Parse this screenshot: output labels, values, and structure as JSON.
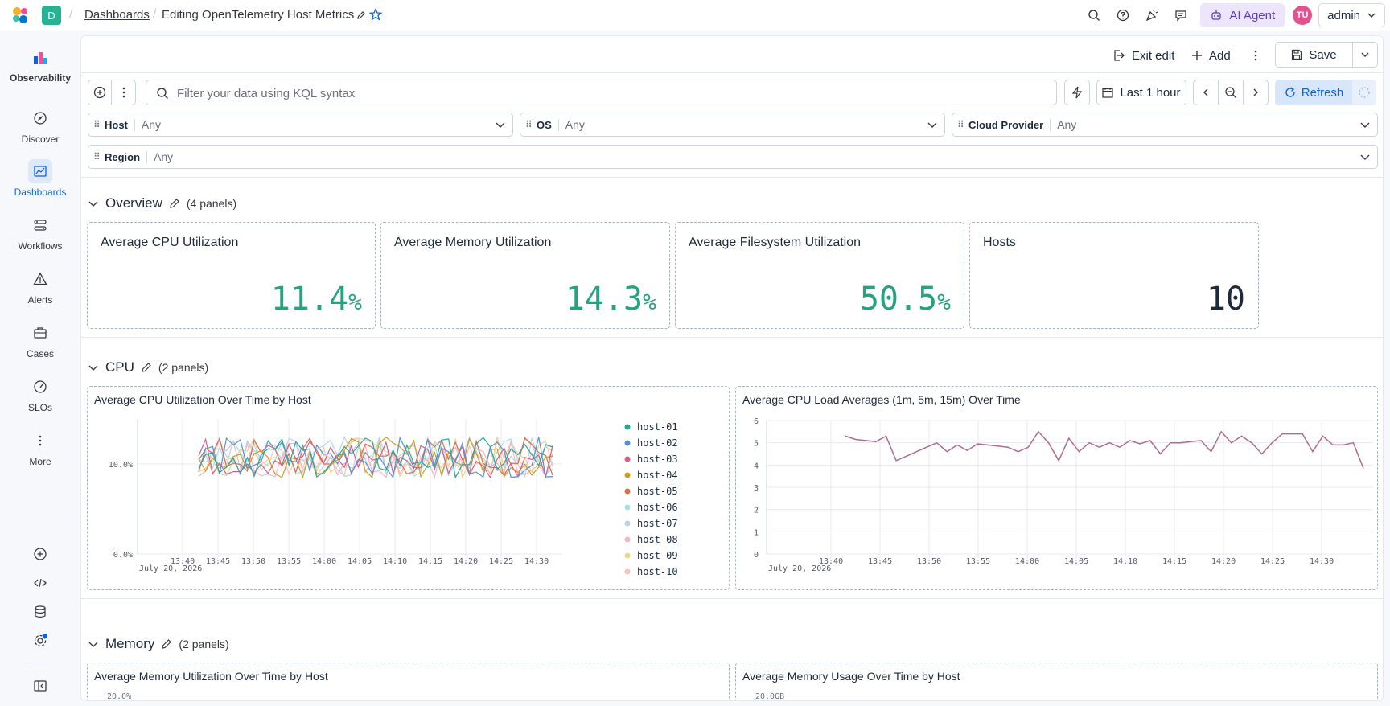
{
  "header": {
    "space_initial": "D",
    "breadcrumb_link": "Dashboards",
    "breadcrumb_current": "Editing OpenTelemetry Host Metrics",
    "ai_agent_label": "AI Agent",
    "avatar_initials": "TU",
    "user_label": "admin"
  },
  "nav": {
    "items": [
      {
        "label": "Observability"
      },
      {
        "label": "Discover"
      },
      {
        "label": "Dashboards"
      },
      {
        "label": "Workflows"
      },
      {
        "label": "Alerts"
      },
      {
        "label": "Cases"
      },
      {
        "label": "SLOs"
      },
      {
        "label": "More"
      }
    ]
  },
  "toolbar": {
    "exit_edit": "Exit edit",
    "add": "Add",
    "save": "Save"
  },
  "query": {
    "placeholder": "Filter your data using KQL syntax",
    "time_range": "Last 1 hour",
    "refresh": "Refresh"
  },
  "controls": [
    {
      "label": "Host",
      "value": "Any"
    },
    {
      "label": "OS",
      "value": "Any"
    },
    {
      "label": "Cloud Provider",
      "value": "Any"
    },
    {
      "label": "Region",
      "value": "Any"
    }
  ],
  "sections": [
    {
      "title": "Overview",
      "count": "(4 panels)"
    },
    {
      "title": "CPU",
      "count": "(2 panels)"
    },
    {
      "title": "Memory",
      "count": "(2 panels)"
    }
  ],
  "metrics": [
    {
      "title": "Average CPU Utilization",
      "value": "11.4",
      "unit": "%"
    },
    {
      "title": "Average Memory Utilization",
      "value": "14.3",
      "unit": "%"
    },
    {
      "title": "Average Filesystem Utilization",
      "value": "50.5",
      "unit": "%"
    },
    {
      "title": "Hosts",
      "value": "10",
      "unit": ""
    }
  ],
  "charts": {
    "cpu_by_host_title": "Average CPU Utilization Over Time by Host",
    "cpu_load_title": "Average CPU Load Averages (1m, 5m, 15m) Over Time",
    "mem_by_host_title": "Average Memory Utilization Over Time by Host",
    "mem_usage_title": "Average Memory Usage Over Time by Host",
    "mem_by_host_top_tick": "20.0%",
    "mem_usage_top_tick": "20.0GB"
  },
  "chart_data": [
    {
      "type": "line",
      "title": "Average CPU Utilization Over Time by Host",
      "x_ticks": [
        "13:40",
        "13:45",
        "13:50",
        "13:55",
        "14:00",
        "14:05",
        "14:10",
        "14:15",
        "14:20",
        "14:25",
        "14:30"
      ],
      "x_sublabel": "July 20, 2026",
      "y_ticks": [
        "0.0%",
        "10.0%"
      ],
      "ylim": [
        0,
        15
      ],
      "legend_position": "right",
      "series": [
        {
          "name": "host-01",
          "color": "#25a89a"
        },
        {
          "name": "host-02",
          "color": "#5a8fd6"
        },
        {
          "name": "host-03",
          "color": "#d36086"
        },
        {
          "name": "host-04",
          "color": "#cf9c1f"
        },
        {
          "name": "host-05",
          "color": "#dd6b4c"
        },
        {
          "name": "host-06",
          "color": "#a8dfe0"
        },
        {
          "name": "host-07",
          "color": "#bcd0ea"
        },
        {
          "name": "host-08",
          "color": "#f0b6c8"
        },
        {
          "name": "host-09",
          "color": "#f1d38a"
        },
        {
          "name": "host-10",
          "color": "#f6c2bc"
        }
      ],
      "value_range": [
        8.5,
        13.0
      ]
    },
    {
      "type": "line",
      "title": "Average CPU Load Averages (1m, 5m, 15m) Over Time",
      "x_ticks": [
        "13:40",
        "13:45",
        "13:50",
        "13:55",
        "14:00",
        "14:05",
        "14:10",
        "14:15",
        "14:20",
        "14:25",
        "14:30"
      ],
      "x_sublabel": "July 20, 2026",
      "y_ticks": [
        "0",
        "1",
        "2",
        "3",
        "4",
        "5",
        "6"
      ],
      "ylim": [
        0,
        6
      ],
      "series": [
        {
          "color": "#b06a8e",
          "values": [
            5.3,
            5.15,
            5.1,
            5.05,
            5.3,
            4.2,
            4.4,
            4.6,
            4.8,
            5.0,
            4.6,
            4.9,
            4.65,
            4.95,
            4.9,
            4.85,
            4.8,
            4.6,
            4.8,
            5.5,
            5.0,
            4.2,
            5.2,
            4.6,
            5.0,
            4.8,
            5.0,
            4.8,
            5.1,
            4.95,
            5.1,
            4.5,
            5.0,
            5.0,
            5.05,
            5.1,
            4.6,
            5.5,
            5.0,
            5.3,
            5.0,
            4.5,
            5.0,
            5.4,
            5.4,
            5.4,
            4.6,
            5.3,
            4.9,
            4.9,
            5.0,
            3.85
          ]
        }
      ]
    }
  ]
}
